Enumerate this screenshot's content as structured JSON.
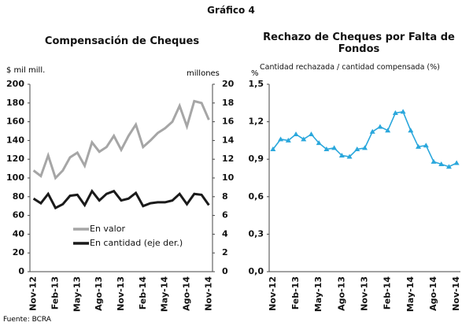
{
  "header": {
    "title": "Gráfico 4"
  },
  "chart_data": [
    {
      "type": "line",
      "title": "Compensación de Cheques",
      "y_label": "$ mil mill.",
      "y2_label": "millones",
      "categories": [
        "Nov-12",
        null,
        null,
        "Feb-13",
        null,
        null,
        "May-13",
        null,
        null,
        "Ago-13",
        null,
        null,
        "Nov-13",
        null,
        null,
        "Feb-14",
        null,
        null,
        "May-14",
        null,
        null,
        "Ago-14",
        null,
        null,
        "Nov-14"
      ],
      "series": [
        {
          "name": "En valor",
          "color": "#a6a6a6",
          "values": [
            108,
            102,
            124,
            100,
            108,
            122,
            127,
            113,
            138,
            128,
            133,
            145,
            130,
            145,
            157,
            133,
            140,
            148,
            153,
            160,
            177,
            155,
            182,
            180,
            162
          ]
        },
        {
          "name": "En cantidad (eje der.)",
          "color": "#1a1a1a",
          "axis": "y2",
          "values": [
            7.8,
            7.3,
            8.3,
            6.8,
            7.2,
            8.1,
            8.2,
            7.1,
            8.6,
            7.6,
            8.3,
            8.6,
            7.6,
            7.8,
            8.4,
            7.0,
            7.3,
            7.4,
            7.4,
            7.6,
            8.3,
            7.2,
            8.3,
            8.2,
            7.1
          ]
        }
      ],
      "ylim": [
        0,
        200
      ],
      "yticks": [
        0,
        20,
        40,
        60,
        80,
        100,
        120,
        140,
        160,
        180,
        200
      ],
      "y2lim": [
        0,
        20
      ],
      "y2ticks": [
        0,
        2,
        4,
        6,
        8,
        10,
        12,
        14,
        16,
        18,
        20
      ],
      "legend": "lower left"
    },
    {
      "type": "line",
      "title": "Rechazo de Cheques por Falta de Fondos",
      "subtitle": "Cantidad rechazada / cantidad compensada (%)",
      "y_label": "%",
      "categories": [
        "Nov-12",
        null,
        null,
        "Feb-13",
        null,
        null,
        "May-13",
        null,
        null,
        "Ago-13",
        null,
        null,
        "Nov-13",
        null,
        null,
        "Feb-14",
        null,
        null,
        "May-14",
        null,
        null,
        "Ago-14",
        null,
        null,
        "Nov-14"
      ],
      "series": [
        {
          "name": "Rechazo",
          "color": "#2aa7dc",
          "marker": "triangle",
          "values": [
            0.98,
            1.06,
            1.05,
            1.1,
            1.06,
            1.1,
            1.03,
            0.98,
            0.99,
            0.93,
            0.92,
            0.98,
            0.99,
            1.12,
            1.16,
            1.13,
            1.27,
            1.28,
            1.13,
            1.0,
            1.01,
            0.88,
            0.86,
            0.84,
            0.87
          ]
        }
      ],
      "ylim": [
        0,
        1.5
      ],
      "yticks": [
        {
          "value": 0,
          "label": "0,0"
        },
        {
          "value": 0.3,
          "label": "0,3"
        },
        {
          "value": 0.6,
          "label": "0,6"
        },
        {
          "value": 0.9,
          "label": "0,9"
        },
        {
          "value": 1.2,
          "label": "1,2"
        },
        {
          "value": 1.5,
          "label": "1,5"
        }
      ]
    }
  ],
  "footer": {
    "source": "Fuente: BCRA"
  }
}
